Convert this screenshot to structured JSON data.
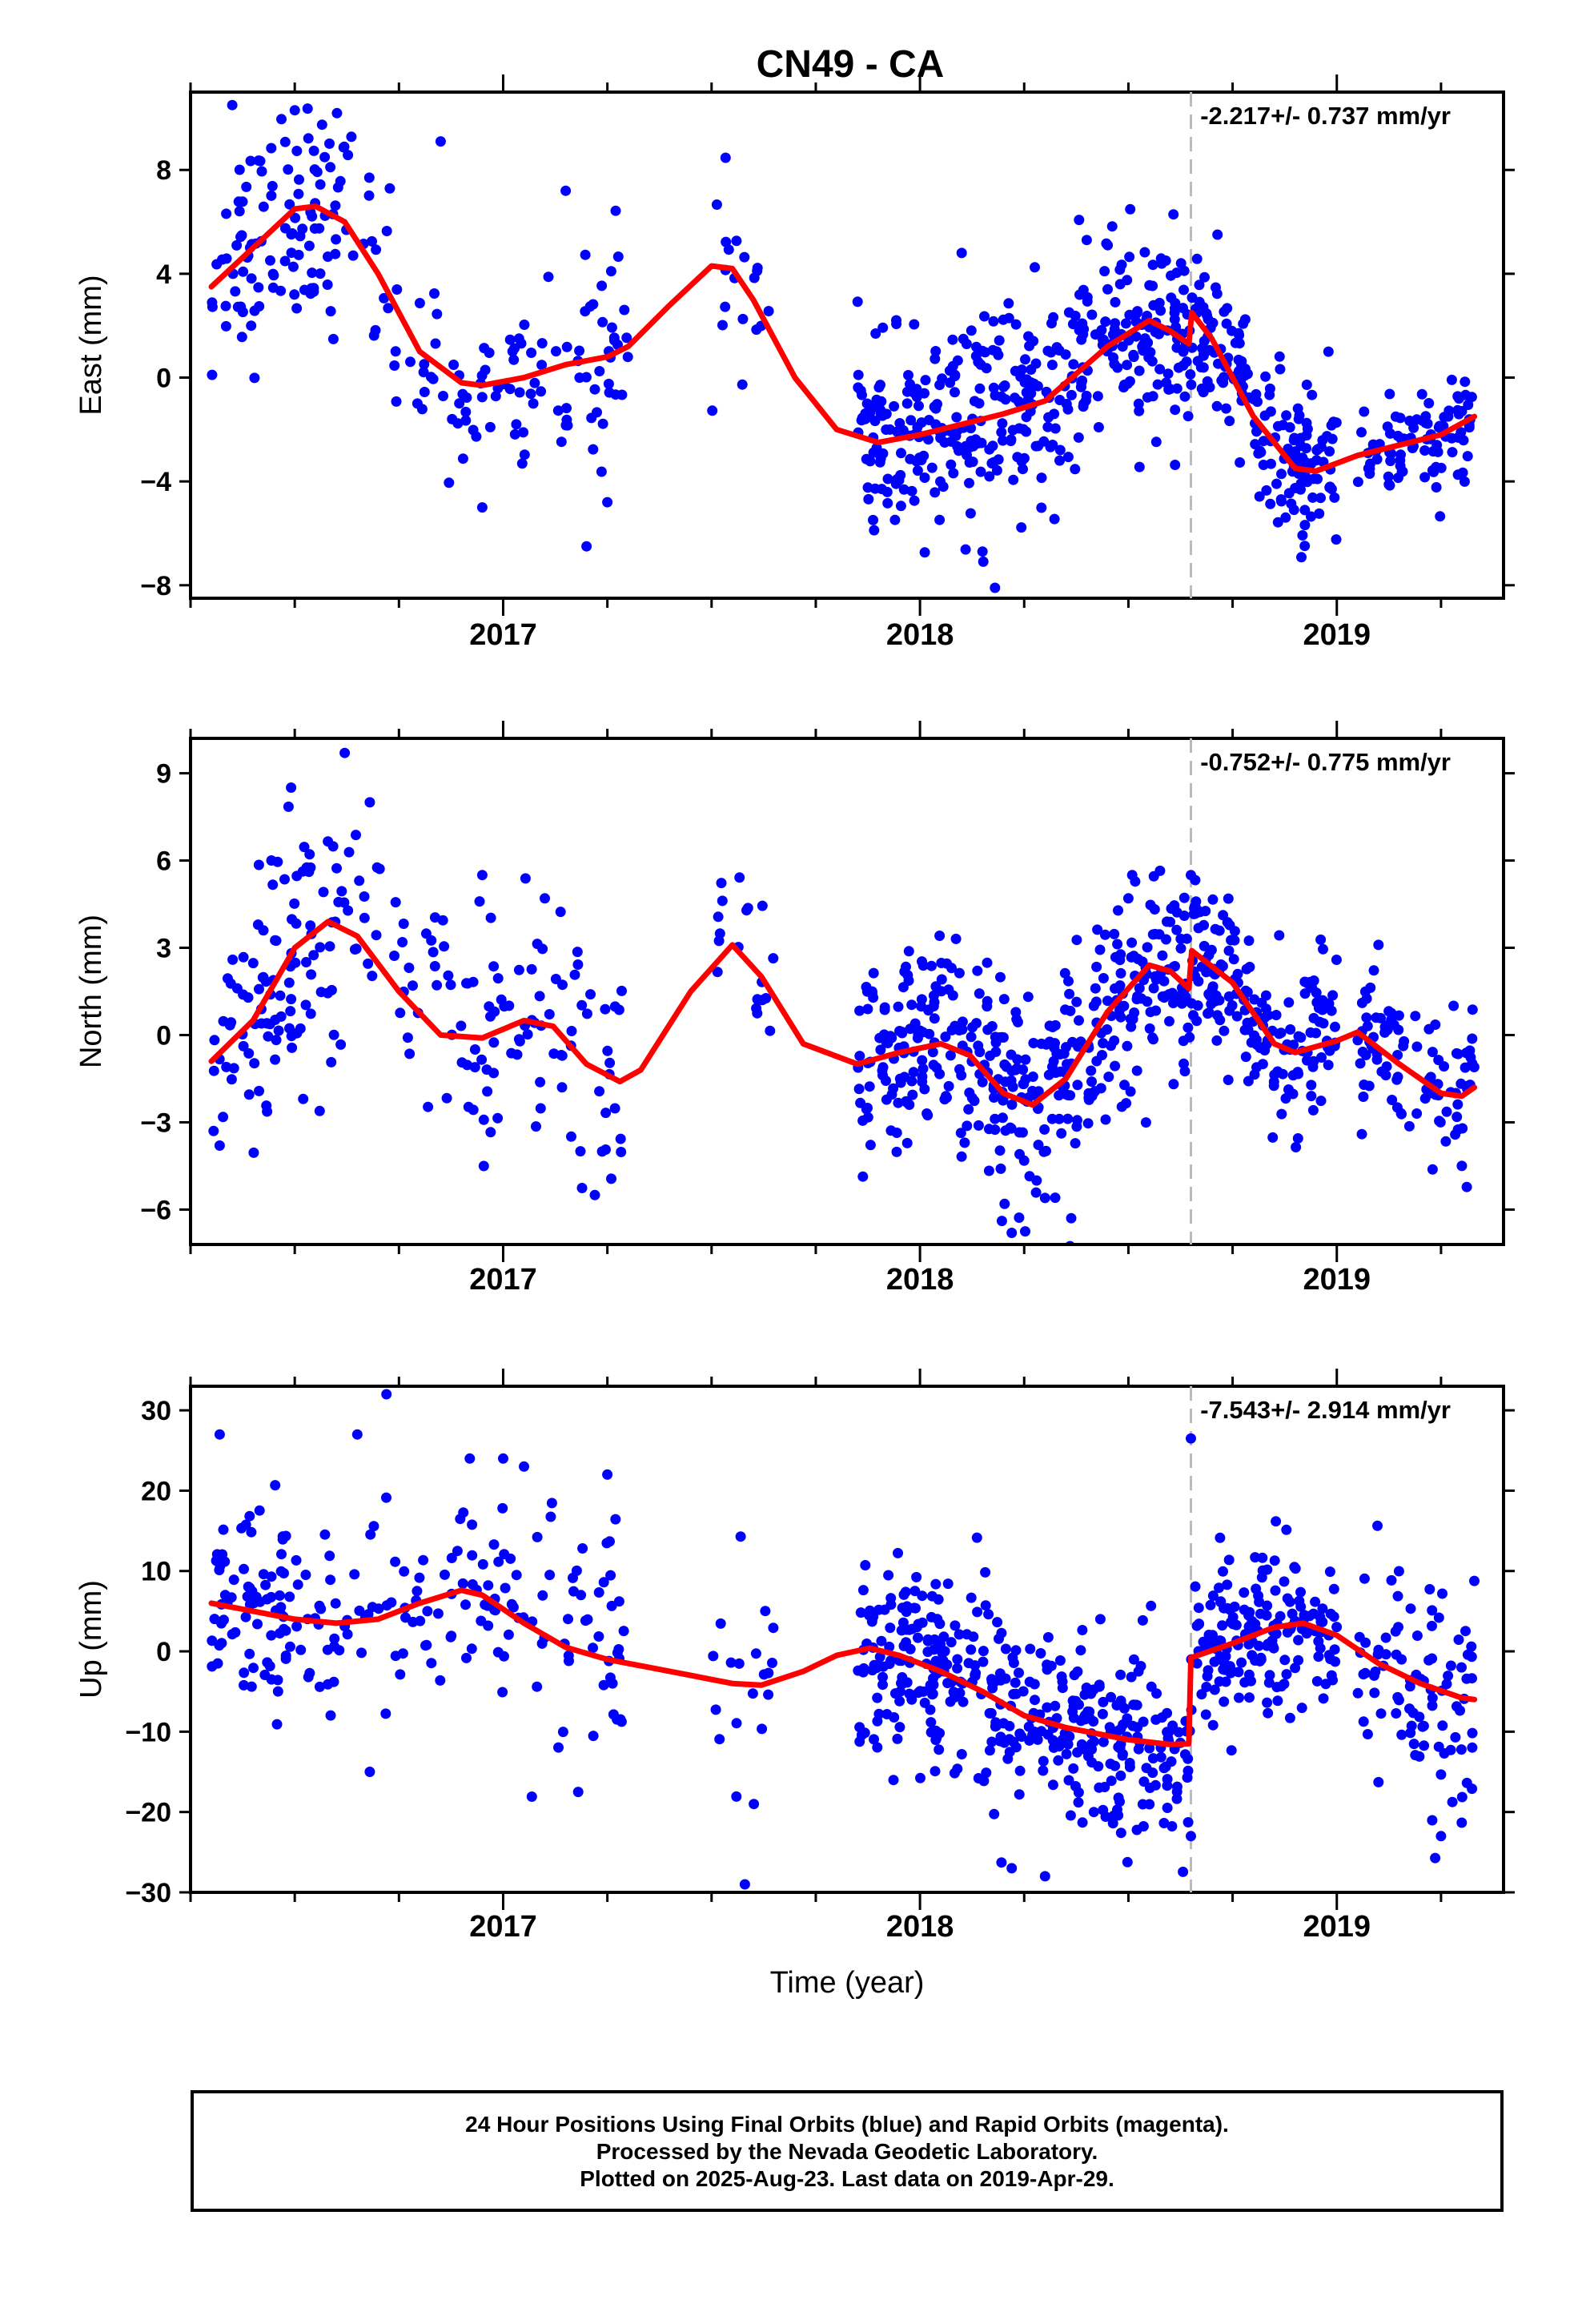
{
  "title": "CN49 - CA",
  "xlabel": "Time (year)",
  "caption": {
    "line1": "24 Hour Positions Using Final Orbits (blue) and Rapid Orbits (magenta).",
    "line2": "Processed by the Nevada Geodetic Laboratory.",
    "line3": "Plotted on 2025-Aug-23. Last data on 2019-Apr-29."
  },
  "colors": {
    "points": "#0000ff",
    "fit": "#ff0000",
    "break_line": "#bbbbbb",
    "frame": "#000000"
  },
  "chart_data": [
    {
      "type": "scatter",
      "ylabel": "East (mm)",
      "rate_label": "-2.217+/- 0.737 mm/yr",
      "xlim": [
        2016.25,
        2019.4
      ],
      "ylim": [
        -8.5,
        11.0
      ],
      "yticks": [
        -8,
        -4,
        0,
        4,
        8
      ],
      "xticks": [
        "2017",
        "2018",
        "2019"
      ],
      "break_x": 2018.65,
      "fit": [
        [
          2016.3,
          3.5
        ],
        [
          2016.4,
          5.0
        ],
        [
          2016.5,
          6.5
        ],
        [
          2016.55,
          6.6
        ],
        [
          2016.62,
          6.0
        ],
        [
          2016.7,
          4.0
        ],
        [
          2016.8,
          1.0
        ],
        [
          2016.9,
          -0.2
        ],
        [
          2016.95,
          -0.3
        ],
        [
          2017.05,
          0.0
        ],
        [
          2017.15,
          0.5
        ],
        [
          2017.25,
          0.8
        ],
        [
          2017.3,
          1.2
        ],
        [
          2017.4,
          2.8
        ],
        [
          2017.5,
          4.3
        ],
        [
          2017.55,
          4.2
        ],
        [
          2017.6,
          3.0
        ],
        [
          2017.7,
          0.0
        ],
        [
          2017.8,
          -2.0
        ],
        [
          2017.9,
          -2.5
        ],
        [
          2018.0,
          -2.2
        ],
        [
          2018.1,
          -1.8
        ],
        [
          2018.2,
          -1.4
        ],
        [
          2018.3,
          -0.9
        ],
        [
          2018.35,
          -0.2
        ],
        [
          2018.45,
          1.2
        ],
        [
          2018.55,
          2.2
        ],
        [
          2018.6,
          1.8
        ],
        [
          2018.645,
          1.3
        ],
        [
          2018.652,
          2.5
        ],
        [
          2018.7,
          1.5
        ],
        [
          2018.8,
          -1.5
        ],
        [
          2018.9,
          -3.5
        ],
        [
          2018.95,
          -3.6
        ],
        [
          2019.05,
          -3.0
        ],
        [
          2019.15,
          -2.6
        ],
        [
          2019.25,
          -2.2
        ],
        [
          2019.33,
          -1.5
        ]
      ],
      "series": [
        {
          "name": "",
          "ranges": [
            [
              2016.3,
              2016.6,
              0.3,
              2.1
            ],
            [
              2016.6,
              2016.9,
              0.7,
              1.9
            ],
            [
              2016.9,
              2017.3,
              0.5,
              1.9
            ],
            [
              2017.5,
              2017.65,
              0.8,
              1.6
            ],
            [
              2017.85,
              2018.35,
              0.2,
              1.9
            ],
            [
              2018.35,
              2018.65,
              0.2,
              1.9
            ],
            [
              2018.65,
              2019.0,
              0.2,
              1.4
            ],
            [
              2019.05,
              2019.33,
              0.3,
              1.1
            ]
          ],
          "outliers": [
            [
              2016.35,
              10.5
            ],
            [
              2016.5,
              10.3
            ],
            [
              2016.85,
              9.1
            ],
            [
              2017.15,
              7.2
            ],
            [
              2017.2,
              -6.5
            ],
            [
              2016.95,
              -5.0
            ],
            [
              2017.25,
              -4.8
            ],
            [
              2018.15,
              -6.7
            ],
            [
              2018.18,
              -8.1
            ],
            [
              2018.4,
              5.3
            ],
            [
              2018.1,
              4.8
            ],
            [
              2018.98,
              1.0
            ]
          ]
        }
      ]
    },
    {
      "type": "scatter",
      "ylabel": "North (mm)",
      "rate_label": "-0.752+/- 0.775 mm/yr",
      "xlim": [
        2016.25,
        2019.4
      ],
      "ylim": [
        -7.2,
        10.2
      ],
      "yticks": [
        -6,
        -3,
        0,
        3,
        6,
        9
      ],
      "xticks": [
        "2017",
        "2018",
        "2019"
      ],
      "break_x": 2018.65,
      "fit": [
        [
          2016.3,
          -0.9
        ],
        [
          2016.4,
          0.5
        ],
        [
          2016.5,
          3.0
        ],
        [
          2016.58,
          3.9
        ],
        [
          2016.65,
          3.4
        ],
        [
          2016.75,
          1.5
        ],
        [
          2016.85,
          0.0
        ],
        [
          2016.95,
          -0.1
        ],
        [
          2017.05,
          0.5
        ],
        [
          2017.12,
          0.3
        ],
        [
          2017.2,
          -1.0
        ],
        [
          2017.28,
          -1.6
        ],
        [
          2017.33,
          -1.2
        ],
        [
          2017.45,
          1.5
        ],
        [
          2017.55,
          3.1
        ],
        [
          2017.62,
          2.0
        ],
        [
          2017.72,
          -0.3
        ],
        [
          2017.85,
          -1.0
        ],
        [
          2017.95,
          -0.6
        ],
        [
          2018.05,
          -0.3
        ],
        [
          2018.12,
          -0.7
        ],
        [
          2018.2,
          -2.0
        ],
        [
          2018.27,
          -2.4
        ],
        [
          2018.35,
          -1.5
        ],
        [
          2018.45,
          0.8
        ],
        [
          2018.55,
          2.4
        ],
        [
          2018.6,
          2.2
        ],
        [
          2018.645,
          1.6
        ],
        [
          2018.652,
          2.9
        ],
        [
          2018.75,
          1.8
        ],
        [
          2018.85,
          -0.3
        ],
        [
          2018.9,
          -0.6
        ],
        [
          2019.0,
          -0.2
        ],
        [
          2019.05,
          0.1
        ],
        [
          2019.15,
          -1.0
        ],
        [
          2019.25,
          -2.0
        ],
        [
          2019.3,
          -2.1
        ],
        [
          2019.33,
          -1.8
        ]
      ],
      "series": [
        {
          "name": "",
          "ranges": [
            [
              2016.3,
              2016.6,
              0.3,
              2.4
            ],
            [
              2016.6,
              2016.9,
              0.7,
              2.2
            ],
            [
              2016.9,
              2017.3,
              0.5,
              2.2
            ],
            [
              2017.5,
              2017.65,
              0.8,
              1.8
            ],
            [
              2017.85,
              2018.35,
              0.2,
              1.7
            ],
            [
              2018.35,
              2018.65,
              0.2,
              1.8
            ],
            [
              2018.65,
              2019.0,
              0.2,
              1.4
            ],
            [
              2019.05,
              2019.33,
              0.3,
              1.4
            ]
          ],
          "outliers": [
            [
              2016.32,
              -3.8
            ],
            [
              2016.62,
              9.7
            ],
            [
              2016.68,
              8.0
            ],
            [
              2016.95,
              5.5
            ],
            [
              2017.1,
              4.7
            ],
            [
              2017.22,
              -5.5
            ],
            [
              2018.22,
              -6.8
            ],
            [
              2018.3,
              -5.6
            ],
            [
              2018.65,
              5.5
            ],
            [
              2018.5,
              4.7
            ],
            [
              2019.1,
              3.1
            ],
            [
              2019.3,
              -4.5
            ]
          ]
        }
      ]
    },
    {
      "type": "scatter",
      "ylabel": "Up (mm)",
      "rate_label": "-7.543+/- 2.914 mm/yr",
      "xlim": [
        2016.25,
        2019.4
      ],
      "ylim": [
        -30.0,
        33.0
      ],
      "yticks": [
        -30,
        -20,
        -10,
        0,
        10,
        20,
        30
      ],
      "xticks": [
        "2017",
        "2018",
        "2019"
      ],
      "break_x": 2018.65,
      "fit": [
        [
          2016.3,
          6.0
        ],
        [
          2016.4,
          5.0
        ],
        [
          2016.5,
          4.0
        ],
        [
          2016.6,
          3.5
        ],
        [
          2016.7,
          4.0
        ],
        [
          2016.8,
          6.0
        ],
        [
          2016.9,
          7.6
        ],
        [
          2016.95,
          7.0
        ],
        [
          2017.05,
          3.5
        ],
        [
          2017.15,
          0.5
        ],
        [
          2017.25,
          -1.0
        ],
        [
          2017.35,
          -2.0
        ],
        [
          2017.45,
          -3.0
        ],
        [
          2017.55,
          -4.0
        ],
        [
          2017.62,
          -4.2
        ],
        [
          2017.72,
          -2.5
        ],
        [
          2017.8,
          -0.5
        ],
        [
          2017.88,
          0.4
        ],
        [
          2017.95,
          -0.5
        ],
        [
          2018.05,
          -2.5
        ],
        [
          2018.15,
          -5.0
        ],
        [
          2018.25,
          -8.0
        ],
        [
          2018.35,
          -9.5
        ],
        [
          2018.5,
          -11.0
        ],
        [
          2018.6,
          -11.6
        ],
        [
          2018.645,
          -11.5
        ],
        [
          2018.65,
          -0.8
        ],
        [
          2018.75,
          1.0
        ],
        [
          2018.85,
          3.0
        ],
        [
          2018.92,
          3.5
        ],
        [
          2019.0,
          2.0
        ],
        [
          2019.1,
          -1.5
        ],
        [
          2019.2,
          -4.0
        ],
        [
          2019.3,
          -5.8
        ],
        [
          2019.33,
          -6.0
        ]
      ],
      "series": [
        {
          "name": "",
          "ranges": [
            [
              2016.3,
              2016.6,
              0.3,
              6.5
            ],
            [
              2016.6,
              2016.9,
              0.7,
              7.0
            ],
            [
              2016.9,
              2017.3,
              0.5,
              7.0
            ],
            [
              2017.5,
              2017.65,
              0.8,
              7.0
            ],
            [
              2017.85,
              2018.35,
              0.2,
              6.0
            ],
            [
              2018.35,
              2018.65,
              0.2,
              6.0
            ],
            [
              2018.65,
              2019.0,
              0.2,
              5.0
            ],
            [
              2019.05,
              2019.33,
              0.3,
              7.0
            ]
          ],
          "outliers": [
            [
              2016.32,
              27.0
            ],
            [
              2016.65,
              27.0
            ],
            [
              2016.72,
              32.0
            ],
            [
              2016.92,
              24.0
            ],
            [
              2017.0,
              24.0
            ],
            [
              2017.05,
              23.0
            ],
            [
              2017.25,
              22.0
            ],
            [
              2017.58,
              -29.0
            ],
            [
              2018.22,
              -27.0
            ],
            [
              2018.3,
              -28.0
            ],
            [
              2018.65,
              26.5
            ],
            [
              2018.65,
              -23.0
            ],
            [
              2016.68,
              -15.0
            ],
            [
              2017.18,
              -17.5
            ],
            [
              2019.25,
              -23.0
            ]
          ]
        }
      ]
    }
  ]
}
